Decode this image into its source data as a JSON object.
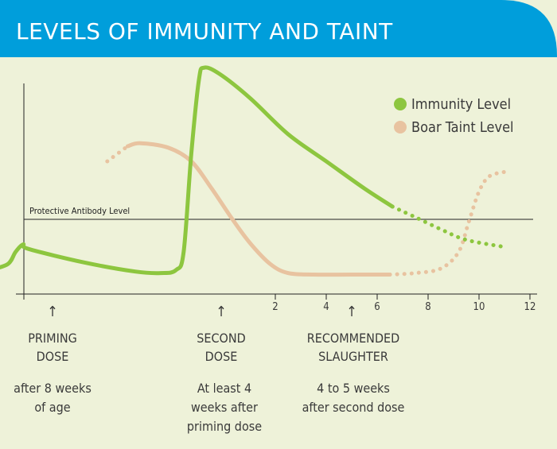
{
  "chart_data": {
    "type": "line",
    "title": "LEVELS OF IMMUNITY AND TAINT",
    "x_ticks": [
      "2",
      "4",
      "6",
      "8",
      "10",
      "12"
    ],
    "series": [
      {
        "name": "Immunity Level",
        "color": "#8dc63f",
        "points": [
          [
            -9.2,
            0.08
          ],
          [
            -8.5,
            0.12
          ],
          [
            -8.2,
            0.2
          ],
          [
            -7.9,
            0.25
          ],
          [
            -7.7,
            0.22
          ],
          [
            -5.5,
            0.13
          ],
          [
            -3.5,
            0.07
          ],
          [
            -2.5,
            0.06
          ],
          [
            -1.9,
            0.08
          ],
          [
            -1.6,
            0.2
          ],
          [
            -1.3,
            0.85
          ],
          [
            -1.0,
            1.34
          ],
          [
            -0.8,
            1.42
          ],
          [
            -0.2,
            1.38
          ],
          [
            1.0,
            1.22
          ],
          [
            2.5,
            0.98
          ],
          [
            4.0,
            0.8
          ],
          [
            5.5,
            0.62
          ],
          [
            6.6,
            0.5
          ]
        ],
        "projection": [
          [
            6.6,
            0.5
          ],
          [
            7.5,
            0.43
          ],
          [
            8.5,
            0.35
          ],
          [
            9.5,
            0.28
          ],
          [
            11.1,
            0.23
          ]
        ]
      },
      {
        "name": "Boar Taint Level",
        "color": "#e8c3a0",
        "points": [
          [
            -3.8,
            0.9
          ],
          [
            -3.3,
            0.92
          ],
          [
            -2.2,
            0.89
          ],
          [
            -1.3,
            0.8
          ],
          [
            -0.5,
            0.62
          ],
          [
            0.3,
            0.42
          ],
          [
            1.0,
            0.26
          ],
          [
            1.8,
            0.12
          ],
          [
            2.5,
            0.06
          ],
          [
            3.5,
            0.05
          ],
          [
            5.0,
            0.05
          ],
          [
            6.5,
            0.05
          ]
        ],
        "lead_in": [
          [
            -4.6,
            0.8
          ],
          [
            -3.8,
            0.9
          ]
        ],
        "projection": [
          [
            6.5,
            0.05
          ],
          [
            7.5,
            0.06
          ],
          [
            8.5,
            0.09
          ],
          [
            9.2,
            0.2
          ],
          [
            9.6,
            0.4
          ],
          [
            10.0,
            0.6
          ],
          [
            10.4,
            0.7
          ],
          [
            11.0,
            0.73
          ]
        ]
      }
    ],
    "reference_line": {
      "label": "Protective Antibody Level",
      "y": 0.42
    }
  },
  "annotations": {
    "priming": {
      "title": [
        "PRIMING",
        "DOSE"
      ],
      "body": [
        "after 8 weeks",
        "of age"
      ]
    },
    "second": {
      "title": [
        "SECOND",
        "DOSE"
      ],
      "body": [
        "At least 4",
        "weeks after",
        "priming dose"
      ]
    },
    "slaughter": {
      "title": [
        "RECOMMENDED",
        "SLAUGHTER"
      ],
      "body": [
        "4 to 5 weeks",
        "after second dose"
      ]
    },
    "arrow": "↑"
  }
}
